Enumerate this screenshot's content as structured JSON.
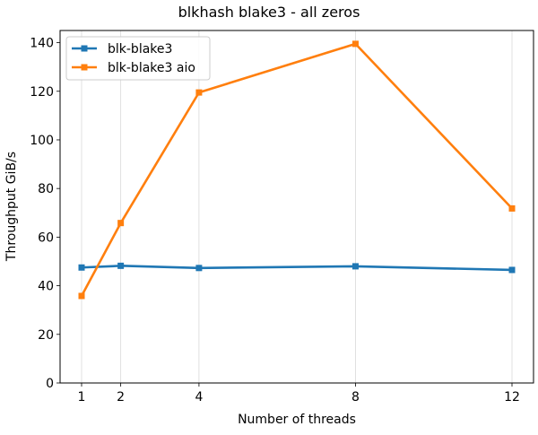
{
  "chart_data": {
    "type": "line",
    "title": "blkhash blake3 - all zeros",
    "xlabel": "Number of threads",
    "ylabel": "Throughput GiB/s",
    "x": [
      1,
      2,
      4,
      8,
      12
    ],
    "xticks": [
      "1",
      "2",
      "4",
      "8",
      "12"
    ],
    "xlim": [
      0.45,
      12.55
    ],
    "yticks": [
      "0",
      "20",
      "40",
      "60",
      "80",
      "100",
      "120",
      "140"
    ],
    "ylim": [
      0,
      145
    ],
    "grid": "vertical",
    "legend_position": "top-left",
    "series": [
      {
        "name": "blk-blake3",
        "color": "#1f77b4",
        "marker": "square",
        "values": [
          47.5,
          48.2,
          47.3,
          48.0,
          46.5
        ]
      },
      {
        "name": "blk-blake3 aio",
        "color": "#ff7f0e",
        "marker": "square",
        "values": [
          35.8,
          65.8,
          119.5,
          139.5,
          71.8
        ]
      }
    ]
  }
}
